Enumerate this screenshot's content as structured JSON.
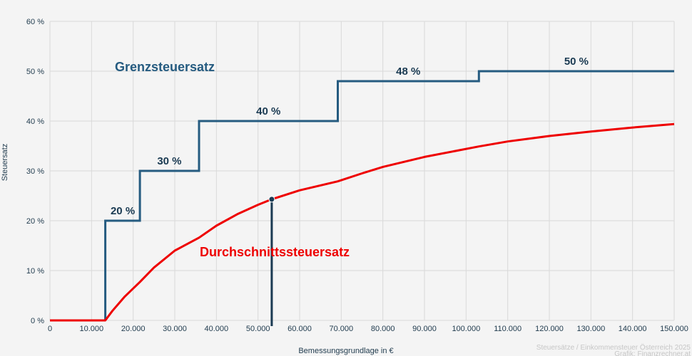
{
  "chart_data": {
    "type": "line",
    "title": "",
    "xlabel": "Bemessungsgrundlage in €",
    "ylabel": "Steuersatz",
    "xlim": [
      0,
      150000
    ],
    "ylim": [
      0,
      60
    ],
    "grid": true,
    "x_ticks": [
      "0",
      "10.000",
      "20.000",
      "30.000",
      "40.000",
      "50.000",
      "60.000",
      "70.000",
      "80.000",
      "90.000",
      "100.000",
      "110.000",
      "120.000",
      "130.000",
      "140.000",
      "150.000"
    ],
    "y_ticks": [
      "0 %",
      "10 %",
      "20 %",
      "30 %",
      "40 %",
      "50 %",
      "60 %"
    ],
    "series": [
      {
        "name": "Grenzsteuersatz",
        "color": "#255b80",
        "style": "step",
        "x": [
          0,
          13308,
          13308,
          21617,
          21617,
          35836,
          35836,
          69166,
          69166,
          103072,
          103072,
          150000
        ],
        "values": [
          0,
          0,
          20,
          20,
          30,
          30,
          40,
          40,
          48,
          48,
          50,
          50
        ],
        "segment_labels": [
          {
            "text": "20 %",
            "x": 17500,
            "y": 20
          },
          {
            "text": "30 %",
            "x": 28700,
            "y": 30
          },
          {
            "text": "40 %",
            "x": 52500,
            "y": 40
          },
          {
            "text": "48 %",
            "x": 86100,
            "y": 48
          },
          {
            "text": "50 %",
            "x": 126500,
            "y": 50
          }
        ]
      },
      {
        "name": "Durchschnittssteuersatz",
        "color": "#ee0000",
        "style": "line",
        "x": [
          0,
          13308,
          15000,
          18000,
          21617,
          25000,
          30000,
          35836,
          40000,
          45000,
          50000,
          53300,
          60000,
          69166,
          75000,
          80000,
          90000,
          103072,
          110000,
          120000,
          130000,
          140000,
          150000
        ],
        "values": [
          0,
          0,
          1.9,
          4.8,
          7.7,
          10.6,
          14.0,
          16.6,
          19.0,
          21.3,
          23.2,
          24.3,
          26.1,
          27.9,
          29.5,
          30.8,
          32.8,
          34.9,
          35.9,
          37.0,
          37.9,
          38.7,
          39.4
        ]
      }
    ],
    "marker": {
      "x": 53300,
      "y": 24.3,
      "color": "#1a3a52"
    },
    "annotations": [
      {
        "text": "Grenzsteuersatz",
        "color": "#255b80"
      },
      {
        "text": "Durchschnittssteuersatz",
        "color": "#ee0000"
      }
    ]
  },
  "labels": {
    "xlabel": "Bemessungsgrundlage in €",
    "ylabel": "Steuersatz",
    "grenz_title": "Grenzsteuersatz",
    "avg_title": "Durchschnittssteuersatz",
    "credit_line1": "Steuersätze / Einkommensteuer Österreich 2025",
    "credit_line2": "Grafik: Finanzrechner.at"
  }
}
